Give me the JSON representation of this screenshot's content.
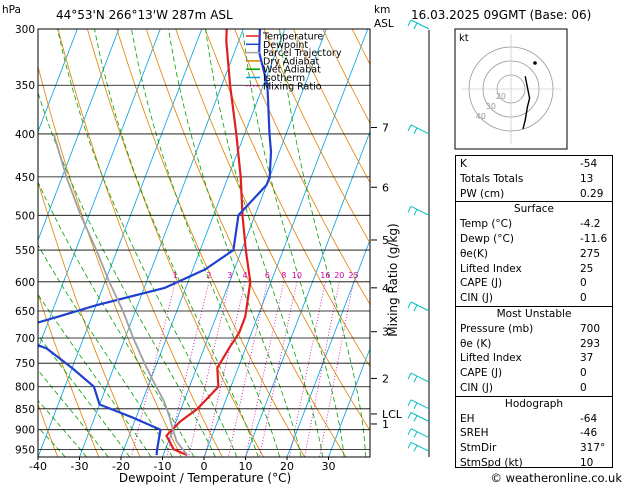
{
  "header": {
    "left_unit": "hPa",
    "location": "44°53'N  266°13'W  287m  ASL",
    "right_unit_top": "km",
    "right_unit_bottom": "ASL",
    "datetime": "16.03.2025  09GMT  (Base: 06)"
  },
  "footer": {
    "credit": "© weatheronline.co.uk"
  },
  "chart_data": {
    "type": "line",
    "xlabel": "Dewpoint / Temperature (°C)",
    "ylabel_right": "Mixing Ratio (g/kg)",
    "x_ticks": [
      -40,
      -30,
      -20,
      -10,
      0,
      10,
      20,
      30
    ],
    "xlim": [
      -40,
      40
    ],
    "pressure_levels": [
      300,
      350,
      400,
      450,
      500,
      550,
      600,
      650,
      700,
      750,
      800,
      850,
      900,
      950
    ],
    "ylim": [
      300,
      970
    ],
    "km_ticks": [
      {
        "label": "7",
        "p": 393
      },
      {
        "label": "6",
        "p": 463
      },
      {
        "label": "5",
        "p": 535
      },
      {
        "label": "4",
        "p": 610
      },
      {
        "label": "3",
        "p": 688
      },
      {
        "label": "2",
        "p": 782
      },
      {
        "label": "LCL",
        "p": 862
      },
      {
        "label": "1",
        "p": 886
      }
    ],
    "mixing_ratio_labels": [
      "1",
      "2",
      "3",
      "4",
      "6",
      "8",
      "10",
      "16",
      "20",
      "25"
    ],
    "mixing_ratio_values": [
      1,
      2,
      3,
      4,
      6,
      8,
      10,
      16,
      20,
      25
    ],
    "legend": {
      "position": "top",
      "items": [
        {
          "name": "Temperature",
          "color": "#e02020",
          "style": "solid"
        },
        {
          "name": "Dewpoint",
          "color": "#2040d0",
          "style": "solid"
        },
        {
          "name": "Parcel Trajectory",
          "color": "#a0a0a0",
          "style": "solid"
        },
        {
          "name": "Dry Adiabat",
          "color": "#e08000",
          "style": "solid"
        },
        {
          "name": "Wet Adiabat",
          "color": "#00a000",
          "style": "solid"
        },
        {
          "name": "Isotherm",
          "color": "#00a0e0",
          "style": "solid"
        },
        {
          "name": "Mixing Ratio",
          "color": "#d000a0",
          "style": "dotted"
        }
      ]
    },
    "series": [
      {
        "name": "Temperature",
        "color": "#e02020",
        "points": [
          [
            -4.2,
            965
          ],
          [
            -8,
            950
          ],
          [
            -11,
            915
          ],
          [
            -9,
            880
          ],
          [
            -6,
            850
          ],
          [
            -3,
            800
          ],
          [
            -5,
            760
          ],
          [
            -4,
            720
          ],
          [
            -3,
            690
          ],
          [
            -3,
            660
          ],
          [
            -5,
            600
          ],
          [
            -9,
            550
          ],
          [
            -13,
            500
          ],
          [
            -17,
            450
          ],
          [
            -22,
            400
          ],
          [
            -28,
            350
          ],
          [
            -33,
            310
          ],
          [
            -34,
            300
          ]
        ]
      },
      {
        "name": "Dewpoint",
        "color": "#2040d0",
        "points": [
          [
            -11.6,
            965
          ],
          [
            -12,
            950
          ],
          [
            -13,
            900
          ],
          [
            -21,
            870
          ],
          [
            -30,
            840
          ],
          [
            -33,
            800
          ],
          [
            -40,
            760
          ],
          [
            -48,
            720
          ],
          [
            -60,
            690
          ],
          [
            -48,
            660
          ],
          [
            -40,
            640
          ],
          [
            -25,
            610
          ],
          [
            -17,
            580
          ],
          [
            -12,
            550
          ],
          [
            -14,
            500
          ],
          [
            -10,
            460
          ],
          [
            -10,
            450
          ],
          [
            -12,
            420
          ],
          [
            -14,
            400
          ],
          [
            -19,
            350
          ],
          [
            -24,
            320
          ],
          [
            -26,
            300
          ]
        ]
      },
      {
        "name": "Parcel Trajectory",
        "color": "#a0a0a0",
        "points": [
          [
            -4.2,
            965
          ],
          [
            -8,
            930
          ],
          [
            -10,
            900
          ],
          [
            -12.5,
            862
          ],
          [
            -15,
            830
          ],
          [
            -19,
            790
          ],
          [
            -23,
            750
          ],
          [
            -28,
            700
          ],
          [
            -33,
            650
          ],
          [
            -39,
            600
          ],
          [
            -45,
            550
          ],
          [
            -52,
            500
          ],
          [
            -59,
            450
          ],
          [
            -66,
            400
          ]
        ]
      }
    ],
    "hodograph": {
      "label": "kt",
      "ring_labels": [
        "40",
        "30",
        "20"
      ],
      "points": [
        [
          0,
          -16
        ],
        [
          1,
          -12
        ],
        [
          2,
          -6
        ],
        [
          3,
          -2
        ],
        [
          2,
          3
        ],
        [
          1,
          8
        ]
      ]
    },
    "wind_barbs_color": "#00c0c0"
  },
  "indices": {
    "top": [
      {
        "label": "K",
        "value": "-54"
      },
      {
        "label": "Totals Totals",
        "value": "13"
      },
      {
        "label": "PW (cm)",
        "value": "0.29"
      }
    ],
    "surface": {
      "title": "Surface",
      "rows": [
        {
          "label": "Temp (°C)",
          "value": "-4.2"
        },
        {
          "label": "Dewp (°C)",
          "value": "-11.6"
        },
        {
          "label": "θe(K)",
          "value": "275"
        },
        {
          "label": "Lifted Index",
          "value": "25"
        },
        {
          "label": "CAPE (J)",
          "value": "0"
        },
        {
          "label": "CIN (J)",
          "value": "0"
        }
      ]
    },
    "most_unstable": {
      "title": "Most Unstable",
      "rows": [
        {
          "label": "Pressure (mb)",
          "value": "700"
        },
        {
          "label": "θe (K)",
          "value": "293"
        },
        {
          "label": "Lifted Index",
          "value": "37"
        },
        {
          "label": "CAPE (J)",
          "value": "0"
        },
        {
          "label": "CIN (J)",
          "value": "0"
        }
      ]
    },
    "hodograph_block": {
      "title": "Hodograph",
      "rows": [
        {
          "label": "EH",
          "value": "-64"
        },
        {
          "label": "SREH",
          "value": "-46"
        },
        {
          "label": "StmDir",
          "value": "317°"
        },
        {
          "label": "StmSpd (kt)",
          "value": "10"
        }
      ]
    }
  }
}
